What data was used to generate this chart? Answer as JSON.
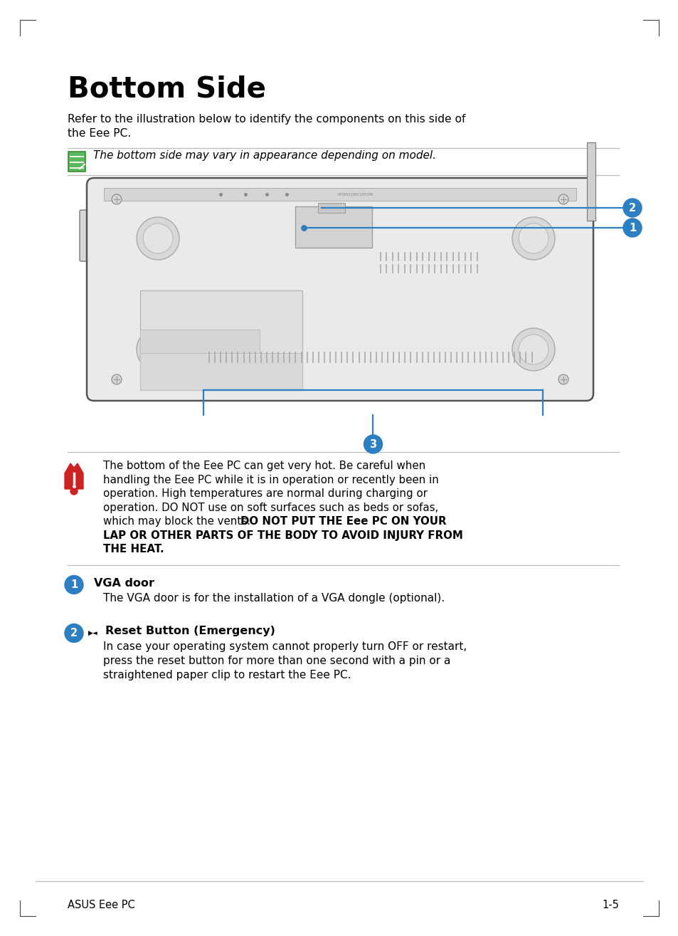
{
  "title": "Bottom Side",
  "subtitle_line1": "Refer to the illustration below to identify the components on this side of",
  "subtitle_line2": "the Eee PC.",
  "note_text": "The bottom side may vary in appearance depending on model.",
  "warn_line1": "The bottom of the Eee PC can get very hot. Be careful when",
  "warn_line2": "handling the Eee PC while it is in operation or recently been in",
  "warn_line3": "operation. High temperatures are normal during charging or",
  "warn_line4": "operation. DO NOT use on soft surfaces such as beds or sofas,",
  "warn_line5_reg": "which may block the vents. ",
  "warn_line5_bold": "DO NOT PUT THE Eee PC ON YOUR",
  "warn_line6": "LAP OR OTHER PARTS OF THE BODY TO AVOID INJURY FROM",
  "warn_line7": "THE HEAT.",
  "item1_label": "VGA door",
  "item1_desc": "The VGA door is for the installation of a VGA dongle (optional).",
  "item2_label": "Reset Button (Emergency)",
  "item2_desc1": "In case your operating system cannot properly turn OFF or restart,",
  "item2_desc2": "press the reset button for more than one second with a pin or a",
  "item2_desc3": "straightened paper clip to restart the Eee PC.",
  "footer_left": "ASUS Eee PC",
  "footer_right": "1-5",
  "bg_color": "#ffffff",
  "text_color": "#000000",
  "blue_color": "#2c7fc2",
  "gray_line_color": "#bbbbbb",
  "laptop_bg": "#eaeaea",
  "laptop_edge": "#555555"
}
